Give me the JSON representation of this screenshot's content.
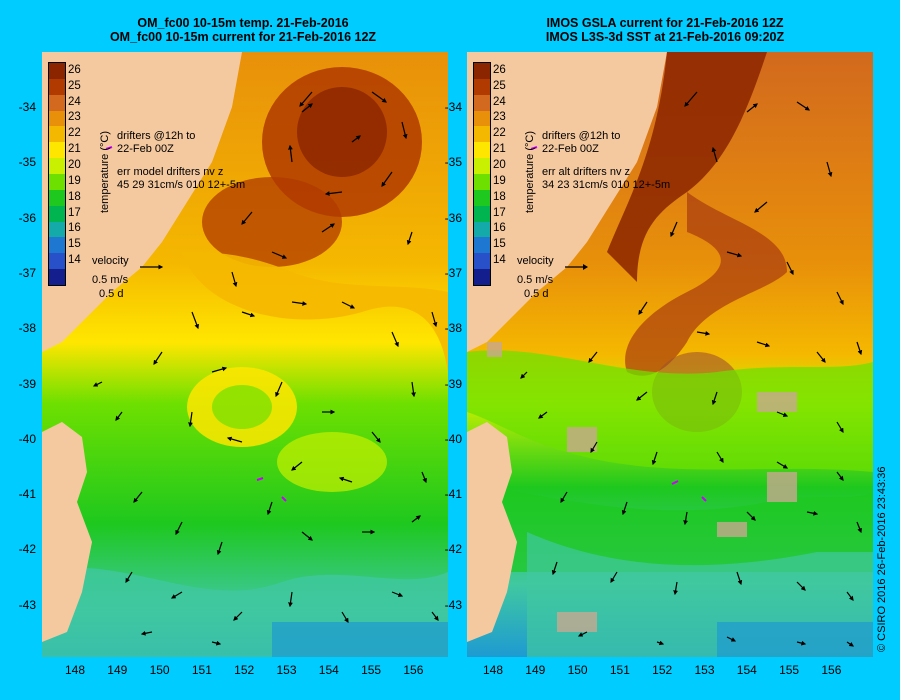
{
  "panels": [
    {
      "title_line1": "OM_fc00 10-15m temp. 21-Feb-2016",
      "title_line2": "OM_fc00 10-15m current for 21-Feb-2016 12Z",
      "drifters_line1": "drifters @12h to",
      "drifters_line2": "22-Feb 00Z",
      "err_line1": "err model drifters nv z",
      "err_line2": "45 29 31cm/s 010 12+-5m",
      "velocity_label": "velocity",
      "velocity_scale": "0.5 m/s",
      "velocity_time": "0.5 d"
    },
    {
      "title_line1": "IMOS GSLA current for 21-Feb-2016 12Z",
      "title_line2": "IMOS L3S-3d SST at 21-Feb-2016 09:20Z",
      "drifters_line1": "drifters @12h to",
      "drifters_line2": "22-Feb 00Z",
      "err_line1": "err alt drifters nv z",
      "err_line2": "34 23 31cm/s 010 12+-5m",
      "velocity_label": "velocity",
      "velocity_scale": "0.5 m/s",
      "velocity_time": "0.5 d"
    }
  ],
  "colorbar": {
    "label": "temperature (°C)",
    "ticks": [
      "26",
      "25",
      "24",
      "23",
      "22",
      "21",
      "20",
      "19",
      "18",
      "17",
      "16",
      "15",
      "14"
    ],
    "colors": [
      "#8b2500",
      "#b03a00",
      "#d2691e",
      "#e8900a",
      "#f5b800",
      "#ffe600",
      "#c8f000",
      "#6ee000",
      "#1ec81e",
      "#00b450",
      "#14aaaa",
      "#1e78d2",
      "#2850c8",
      "#141e8c"
    ]
  },
  "lat_labels": [
    "-34",
    "-35",
    "-36",
    "-37",
    "-38",
    "-39",
    "-40",
    "-41",
    "-42",
    "-43"
  ],
  "lon_labels": [
    "148",
    "149",
    "150",
    "151",
    "152",
    "153",
    "154",
    "155",
    "156"
  ],
  "copyright": "© CSIRO 2016   26-Feb-2016 23:43:36",
  "map_colors": {
    "land": "#f5c9a0",
    "warm_core": "#8b3a0a",
    "east_australian_current": "#e8900a",
    "tasman_front": "#ffe600",
    "shelf_green": "#1ec81e",
    "south_cool": "#40c8a0",
    "cloud_mask": "#c8a890"
  }
}
